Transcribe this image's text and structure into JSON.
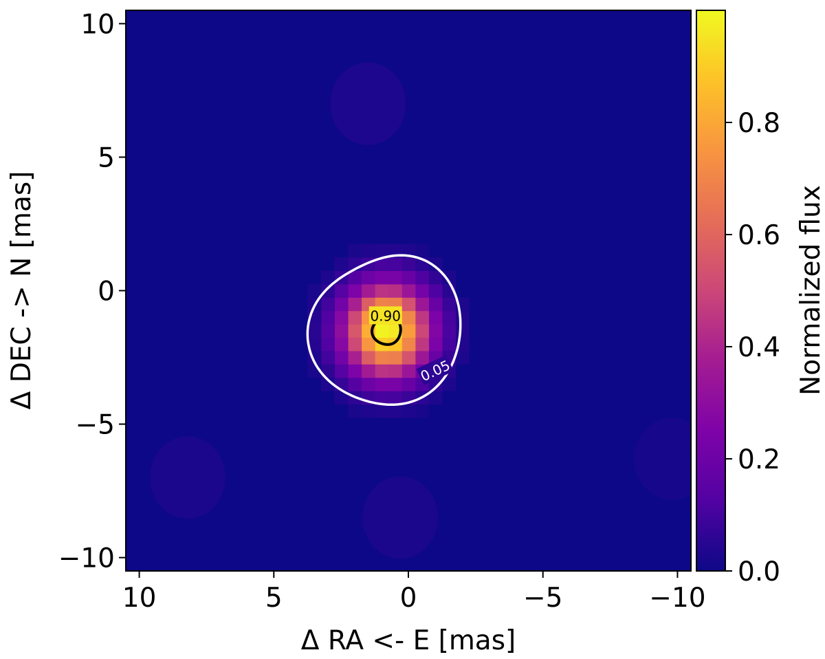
{
  "chart_data": {
    "type": "heatmap",
    "title": "",
    "xlabel": "Δ RA <- E [mas]",
    "ylabel": "Δ DEC -> N [mas]",
    "colorbar_label": "Normalized flux",
    "colormap": "plasma",
    "xlim": [
      10.5,
      -10.5
    ],
    "ylim": [
      -10.5,
      10.5
    ],
    "x_ticks": [
      10,
      5,
      0,
      -5,
      -10
    ],
    "y_ticks": [
      10,
      5,
      0,
      -5,
      -10
    ],
    "x_tick_labels": [
      "10",
      "5",
      "0",
      "−5",
      "−10"
    ],
    "y_tick_labels": [
      "10",
      "5",
      "0",
      "−5",
      "−10"
    ],
    "colorbar_range": [
      0.0,
      1.0
    ],
    "colorbar_ticks": [
      0.0,
      0.2,
      0.4,
      0.6,
      0.8
    ],
    "colorbar_tick_labels": [
      "0.0",
      "0.2",
      "0.4",
      "0.6",
      "0.8"
    ],
    "pixel_size": 0.5,
    "source": {
      "peak_x": 0.8,
      "peak_y": -1.5,
      "peak_flux": 1.0,
      "fwhm_x": 2.6,
      "fwhm_y": 2.8
    },
    "faint_lobes": [
      {
        "x": 1.5,
        "y": 7.0,
        "flux": 0.05
      },
      {
        "x": 8.2,
        "y": -7.0,
        "flux": 0.04
      },
      {
        "x": 0.3,
        "y": -8.5,
        "flux": 0.04
      },
      {
        "x": -9.8,
        "y": -6.3,
        "flux": 0.03
      }
    ],
    "contours": [
      {
        "level": 0.05,
        "label": "0.05",
        "color": "#ffffff",
        "label_x": -1.0,
        "label_y": -3.0,
        "label_angle": 25
      },
      {
        "level": 0.9,
        "label": "0.90",
        "color": "#000000",
        "label_x": 0.85,
        "label_y": -0.95,
        "label_angle": 0
      }
    ],
    "grid": false
  },
  "colors": {
    "background": "#ffffff",
    "axis": "#000000",
    "low": "#0d0887",
    "high": "#f0f921"
  }
}
